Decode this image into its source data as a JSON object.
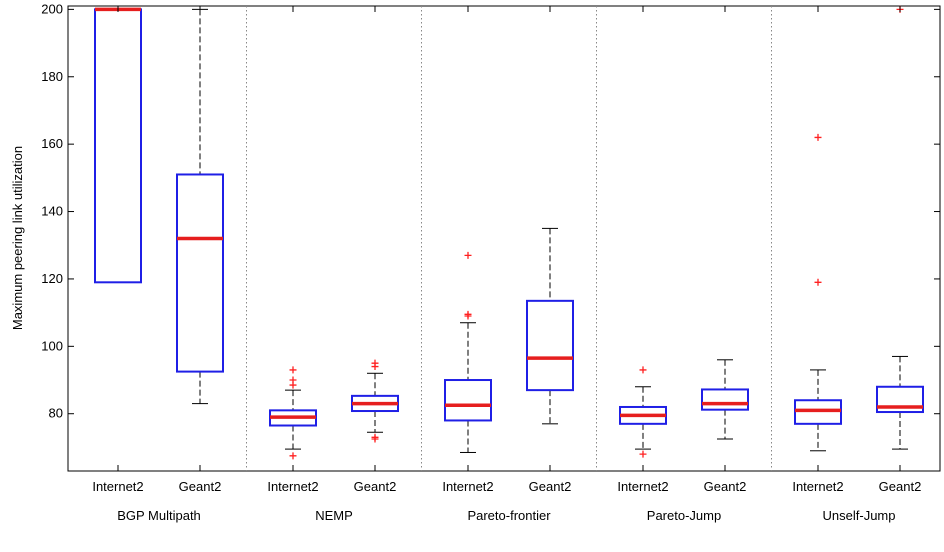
{
  "chart_data": {
    "type": "boxplot",
    "title": "",
    "ylabel": "Maximum peering link utilization",
    "xlabel": "",
    "ylim": [
      63,
      201
    ],
    "yticks": [
      80,
      100,
      120,
      140,
      160,
      180,
      200
    ],
    "grid": false,
    "legend": "none",
    "colors": {
      "box": "#1f1fe6",
      "median": "#e61e1e",
      "whisker": "#000000",
      "outlier": "#ff2020",
      "separator": "#888888"
    },
    "groups": [
      {
        "label": "BGP Multipath",
        "boxes": [
          {
            "label": "Internet2",
            "q1": 119,
            "median": 200,
            "q3": 200,
            "whisker_low": 119,
            "whisker_high": 200,
            "outliers": []
          },
          {
            "label": "Geant2",
            "q1": 92.5,
            "median": 132,
            "q3": 151,
            "whisker_low": 83,
            "whisker_high": 200,
            "outliers": []
          }
        ]
      },
      {
        "label": "NEMP",
        "boxes": [
          {
            "label": "Internet2",
            "q1": 76.5,
            "median": 79,
            "q3": 81,
            "whisker_low": 69.5,
            "whisker_high": 87,
            "outliers": [
              67.5,
              88.5,
              90,
              93
            ]
          },
          {
            "label": "Geant2",
            "q1": 80.8,
            "median": 83,
            "q3": 85.3,
            "whisker_low": 74.5,
            "whisker_high": 92,
            "outliers": [
              72.5,
              73,
              94,
              95
            ]
          }
        ]
      },
      {
        "label": "Pareto-frontier",
        "boxes": [
          {
            "label": "Internet2",
            "q1": 78,
            "median": 82.5,
            "q3": 90,
            "whisker_low": 68.5,
            "whisker_high": 107,
            "outliers": [
              109,
              109.5,
              127
            ]
          },
          {
            "label": "Geant2",
            "q1": 87,
            "median": 96.5,
            "q3": 113.5,
            "whisker_low": 77,
            "whisker_high": 135,
            "outliers": []
          }
        ]
      },
      {
        "label": "Pareto-Jump",
        "boxes": [
          {
            "label": "Internet2",
            "q1": 77,
            "median": 79.5,
            "q3": 82,
            "whisker_low": 69.5,
            "whisker_high": 88,
            "outliers": [
              68,
              93
            ]
          },
          {
            "label": "Geant2",
            "q1": 81.2,
            "median": 83,
            "q3": 87.2,
            "whisker_low": 72.5,
            "whisker_high": 96,
            "outliers": []
          }
        ]
      },
      {
        "label": "Unself-Jump",
        "boxes": [
          {
            "label": "Internet2",
            "q1": 77,
            "median": 81,
            "q3": 84,
            "whisker_low": 69,
            "whisker_high": 93,
            "outliers": [
              119,
              162
            ]
          },
          {
            "label": "Geant2",
            "q1": 80.5,
            "median": 82,
            "q3": 88,
            "whisker_low": 69.5,
            "whisker_high": 97,
            "outliers": [
              200
            ]
          }
        ]
      }
    ]
  }
}
